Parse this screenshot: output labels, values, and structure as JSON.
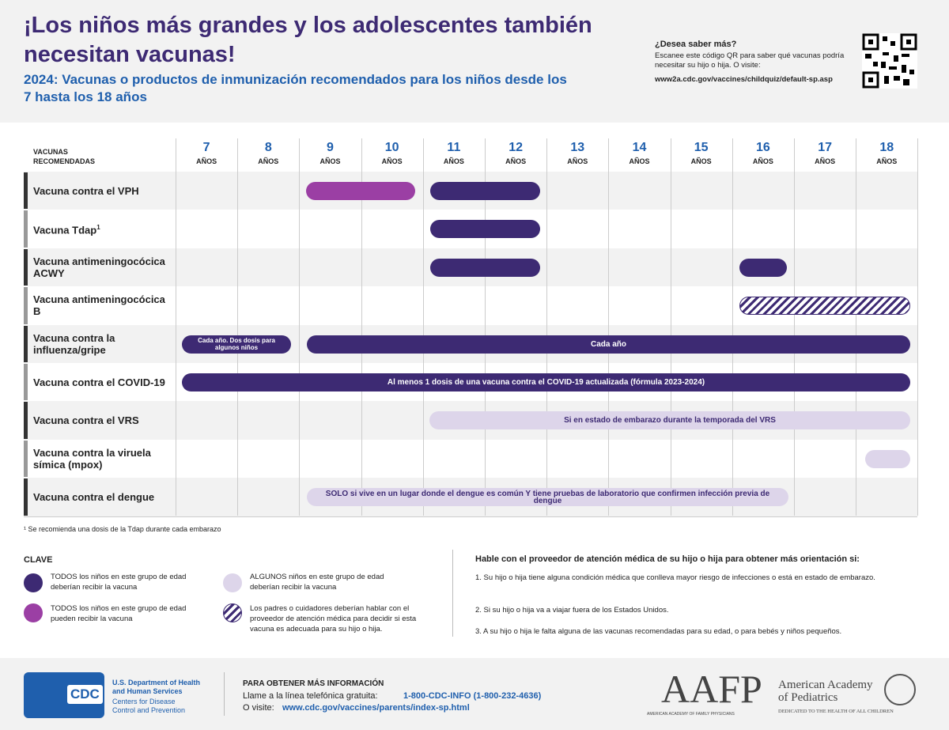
{
  "header": {
    "title": "¡Los niños más grandes y los adolescentes también necesitan vacunas!",
    "subtitle": "2024: Vacunas o productos de inmunización recomendados para los niños desde los 7 hasta los 18 años",
    "qr": {
      "heading": "¿Desea saber más?",
      "text": "Escanee este código QR para saber qué vacunas podría necesitar su hijo o hija. O visite:",
      "url": "www2a.cdc.gov/vaccines/childquiz/default-sp.asp"
    }
  },
  "table": {
    "column_header": "VACUNAS RECOMENDADAS",
    "ages": [
      {
        "age": "7",
        "unit": "AÑOS"
      },
      {
        "age": "8",
        "unit": "AÑOS"
      },
      {
        "age": "9",
        "unit": "AÑOS"
      },
      {
        "age": "10",
        "unit": "AÑOS"
      },
      {
        "age": "11",
        "unit": "AÑOS"
      },
      {
        "age": "12",
        "unit": "AÑOS"
      },
      {
        "age": "13",
        "unit": "AÑOS"
      },
      {
        "age": "14",
        "unit": "AÑOS"
      },
      {
        "age": "15",
        "unit": "AÑOS"
      },
      {
        "age": "16",
        "unit": "AÑOS"
      },
      {
        "age": "17",
        "unit": "AÑOS"
      },
      {
        "age": "18",
        "unit": "AÑOS"
      }
    ],
    "rows": [
      {
        "name": "Vacuna contra el VPH"
      },
      {
        "name": "Vacuna Tdap",
        "sup": "1"
      },
      {
        "name": "Vacuna antimeningocócica ACWY"
      },
      {
        "name": "Vacuna antimeningocócica B"
      },
      {
        "name": "Vacuna contra la influenza/gripe",
        "bar_labels": [
          "Cada año. Dos dosis para algunos niños",
          "Cada año"
        ]
      },
      {
        "name": "Vacuna contra el COVID-19",
        "bar_labels": [
          "Al menos 1 dosis de una vacuna contra el COVID-19 actualizada (fórmula 2023-2024)"
        ]
      },
      {
        "name": "Vacuna contra el VRS",
        "bar_labels": [
          "Si en estado de embarazo durante la temporada del VRS"
        ]
      },
      {
        "name": "Vacuna contra la viruela símica (mpox)"
      },
      {
        "name": "Vacuna contra el dengue",
        "bar_labels": [
          "SOLO si vive en un lugar donde el dengue es común Y tiene pruebas de laboratorio que confirmen infección previa de dengue"
        ]
      }
    ]
  },
  "footnote": "¹ Se recomienda una dosis de la Tdap durante cada embarazo",
  "key": {
    "title": "CLAVE",
    "items": [
      "TODOS los niños en este grupo de edad deberían recibir la vacuna",
      "ALGUNOS niños en este grupo de edad deberían recibir la vacuna",
      "TODOS los niños en este grupo de edad pueden recibir la vacuna",
      "Los padres o cuidadores deberían hablar con el proveedor de atención médica para decidir si esta vacuna es adecuada para su hijo o hija."
    ]
  },
  "info": {
    "title": "Hable con el proveedor de atención médica de su hijo o hija para obtener más orientación si:",
    "items": [
      "1. Su hijo o hija tiene alguna condición médica que conlleva mayor riesgo de infecciones o está en estado de embarazo.",
      "2. Si su hijo o hija va a viajar fuera de los Estados Unidos.",
      "3. A su hijo o hija le falta alguna de las vacunas recomendadas para su edad, o para bebés y niños pequeños."
    ]
  },
  "footer": {
    "cdc": "CDC",
    "hhs": "U.S. Department of Health and Human Services",
    "cdc_name": "Centers for Disease Control and Prevention",
    "more_title": "PARA OBTENER MÁS INFORMACIÓN",
    "phone_prefix": "Llame a la línea telefónica gratuita:",
    "phone": "1-800-CDC-INFO (1-800-232-4636)",
    "web_prefix": "O visite:",
    "web": "www.cdc.gov/vaccines/parents/index-sp.html",
    "aafp": "AAFP",
    "aafp_name": "AMERICAN ACADEMY OF FAMILY PHYSICIANS",
    "aap": "American Academy of Pediatrics",
    "aap_tag": "DEDICATED TO THE HEALTH OF ALL CHILDREN"
  }
}
